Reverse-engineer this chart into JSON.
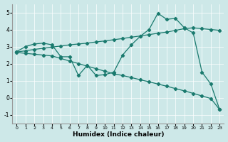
{
  "xlabel": "Humidex (Indice chaleur)",
  "xlim": [
    -0.5,
    23.5
  ],
  "ylim": [
    -1.5,
    5.5
  ],
  "xticks": [
    0,
    1,
    2,
    3,
    4,
    5,
    6,
    7,
    8,
    9,
    10,
    11,
    12,
    13,
    14,
    15,
    16,
    17,
    18,
    19,
    20,
    21,
    22,
    23
  ],
  "yticks": [
    -1,
    0,
    1,
    2,
    3,
    4,
    5
  ],
  "bg_color": "#cde8e8",
  "line_color": "#1a7a6e",
  "line1_x": [
    0,
    1,
    2,
    3,
    4,
    5,
    6,
    7,
    8,
    9,
    10,
    11,
    12,
    13,
    14,
    15,
    16,
    17,
    18,
    19,
    20,
    21,
    22,
    23
  ],
  "line1_y": [
    2.7,
    3.0,
    3.15,
    3.2,
    3.1,
    2.4,
    2.4,
    1.3,
    1.9,
    1.3,
    1.35,
    1.5,
    2.5,
    3.1,
    3.6,
    4.0,
    4.95,
    4.6,
    4.65,
    4.1,
    3.8,
    1.5,
    0.8,
    -0.7
  ],
  "line2_x": [
    0,
    1,
    2,
    3,
    4,
    5,
    6,
    7,
    8,
    9,
    10,
    11,
    12,
    13,
    14,
    15,
    16,
    17,
    18,
    19,
    20,
    21,
    22,
    23
  ],
  "line2_y": [
    2.68,
    2.75,
    2.83,
    2.9,
    2.97,
    3.03,
    3.1,
    3.15,
    3.2,
    3.27,
    3.33,
    3.4,
    3.47,
    3.55,
    3.62,
    3.7,
    3.78,
    3.85,
    3.95,
    4.05,
    4.1,
    4.05,
    4.0,
    3.95
  ],
  "line3_x": [
    0,
    1,
    2,
    3,
    4,
    5,
    6,
    7,
    8,
    9,
    10,
    11,
    12,
    13,
    14,
    15,
    16,
    17,
    18,
    19,
    20,
    21,
    22,
    23
  ],
  "line3_y": [
    2.65,
    2.6,
    2.55,
    2.5,
    2.45,
    2.3,
    2.15,
    2.0,
    1.85,
    1.7,
    1.55,
    1.4,
    1.3,
    1.18,
    1.05,
    0.93,
    0.8,
    0.67,
    0.53,
    0.4,
    0.25,
    0.1,
    -0.05,
    -0.7
  ]
}
